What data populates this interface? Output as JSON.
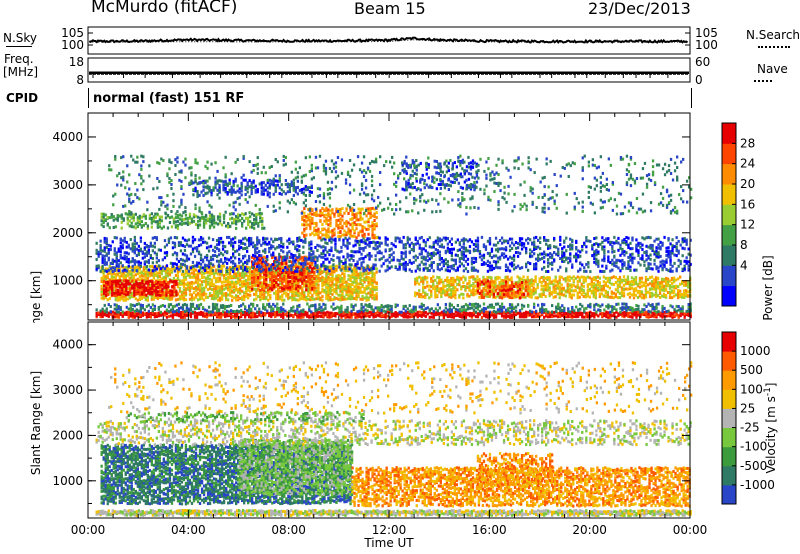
{
  "header": {
    "station": "McMurdo (fitACF)",
    "beam": "Beam 15",
    "date": "23/Dec/2013"
  },
  "side_labels": {
    "nsky": "N.Sky",
    "nsearch": "N.Search",
    "freq": "Freq.",
    "freq_unit": "[MHz]",
    "nave": "Nave",
    "cpid": "CPID"
  },
  "cpid_text": "normal (fast) 151 RF",
  "chart_data": [
    {
      "type": "line",
      "name": "noise panel",
      "left_ticks": [
        "10^5",
        "10^0"
      ],
      "right_ticks": [
        "10^5",
        "10^0"
      ],
      "x": [
        0,
        2,
        4,
        6,
        8,
        10,
        12,
        13,
        14,
        16,
        18,
        20,
        22,
        24
      ],
      "n_sky_log": [
        1.5,
        1.6,
        2.2,
        1.9,
        1.7,
        1.7,
        2.0,
        2.8,
        2.1,
        1.6,
        1.5,
        1.5,
        1.5,
        1.5
      ],
      "n_search_log": [
        1.2,
        1.2,
        1.4,
        1.3,
        1.3,
        1.3,
        1.5,
        2.2,
        1.6,
        1.3,
        1.2,
        1.2,
        1.2,
        1.2
      ]
    },
    {
      "type": "line",
      "name": "frequency / nave panel",
      "left_ticks": [
        "18",
        "8"
      ],
      "right_ticks": [
        "60",
        "0"
      ],
      "freq_mhz": 12.0,
      "nave": 20
    },
    {
      "type": "heatmap",
      "quantity": "power",
      "xlabel": "",
      "ylabel": "Slant Range [km]",
      "xlim_hours": [
        0,
        24
      ],
      "ylim_km": [
        180,
        4500
      ],
      "y_ticks": [
        "4000",
        "3000",
        "2000",
        "1000"
      ],
      "colorbar_label": "Power [dB]",
      "colorbar_ticks": [
        "28",
        "24",
        "20",
        "16",
        "12",
        "8",
        "4"
      ],
      "colors": [
        "#0000ff",
        "#2a46c8",
        "#2f7a64",
        "#44a044",
        "#9acd32",
        "#f0c000",
        "#ff8c00",
        "#ff4500",
        "#e60000"
      ],
      "bands": [
        {
          "start": 0.3,
          "end": 24,
          "r_lo": 180,
          "r_hi": 320,
          "level": 8,
          "density": 0.95
        },
        {
          "start": 0.3,
          "end": 24,
          "r_lo": 350,
          "r_hi": 500,
          "level": 2,
          "density": 0.45
        },
        {
          "start": 0.5,
          "end": 11.5,
          "r_lo": 600,
          "r_hi": 1300,
          "level": 5,
          "density": 0.7
        },
        {
          "start": 0.6,
          "end": 3.5,
          "r_lo": 700,
          "r_hi": 1000,
          "level": 8,
          "density": 0.75
        },
        {
          "start": 6.5,
          "end": 9.0,
          "r_lo": 800,
          "r_hi": 1500,
          "level": 7,
          "density": 0.6
        },
        {
          "start": 13.0,
          "end": 24,
          "r_lo": 650,
          "r_hi": 1100,
          "level": 5,
          "density": 0.6
        },
        {
          "start": 15.5,
          "end": 17.5,
          "r_lo": 650,
          "r_hi": 1000,
          "level": 7,
          "density": 0.5
        },
        {
          "start": 0.3,
          "end": 24,
          "r_lo": 1200,
          "r_hi": 1900,
          "level": 1,
          "density": 0.35
        },
        {
          "start": 0.5,
          "end": 7.0,
          "r_lo": 2100,
          "r_hi": 2400,
          "level": 3,
          "density": 0.45
        },
        {
          "start": 8.5,
          "end": 11.5,
          "r_lo": 1900,
          "r_hi": 2500,
          "level": 6,
          "density": 0.45
        },
        {
          "start": 4.0,
          "end": 9.0,
          "r_lo": 2800,
          "r_hi": 3100,
          "level": 1,
          "density": 0.35
        },
        {
          "start": 12.5,
          "end": 15.5,
          "r_lo": 2900,
          "r_hi": 3500,
          "level": 1,
          "density": 0.3
        },
        {
          "start": 0.8,
          "end": 24,
          "r_lo": 2400,
          "r_hi": 3600,
          "level": 2,
          "density": 0.1
        }
      ]
    },
    {
      "type": "heatmap",
      "quantity": "velocity",
      "xlabel": "Time UT",
      "ylabel": "Slant Range [km]",
      "xlim_hours": [
        0,
        24
      ],
      "ylim_km": [
        180,
        4500
      ],
      "x_ticks": [
        "00:00",
        "04:00",
        "08:00",
        "12:00",
        "16:00",
        "20:00",
        "00:00"
      ],
      "y_ticks": [
        "4000",
        "3000",
        "2000",
        "1000"
      ],
      "colorbar_label": "Velocity [m s^-1]",
      "colorbar_ticks": [
        "1000",
        "500",
        "100",
        "25",
        "-25",
        "-100",
        "-500",
        "-1000"
      ],
      "colors": [
        "#2a46c8",
        "#2f7a64",
        "#3c9b3c",
        "#77c83c",
        "#b4b4b4",
        "#f0c000",
        "#ff9a00",
        "#ff5a00",
        "#e60000"
      ],
      "bands": [
        {
          "start": 0.3,
          "end": 24,
          "r_lo": 180,
          "r_hi": 320,
          "level": 4,
          "density": 0.95
        },
        {
          "start": 0.5,
          "end": 10.5,
          "r_lo": 500,
          "r_hi": 1800,
          "level": 1,
          "density": 0.7
        },
        {
          "start": 6.0,
          "end": 10.5,
          "r_lo": 700,
          "r_hi": 1900,
          "level": 3,
          "density": 0.6
        },
        {
          "start": 10.5,
          "end": 24,
          "r_lo": 450,
          "r_hi": 1300,
          "level": 6,
          "density": 0.6
        },
        {
          "start": 15.5,
          "end": 18.5,
          "r_lo": 900,
          "r_hi": 1600,
          "level": 6,
          "density": 0.45
        },
        {
          "start": 0.3,
          "end": 24,
          "r_lo": 1800,
          "r_hi": 2300,
          "level": 4,
          "density": 0.3
        },
        {
          "start": 1.5,
          "end": 11.0,
          "r_lo": 2300,
          "r_hi": 2500,
          "level": 3,
          "density": 0.3
        },
        {
          "start": 0.8,
          "end": 24,
          "r_lo": 2500,
          "r_hi": 3600,
          "level": 5,
          "density": 0.08
        }
      ]
    }
  ]
}
